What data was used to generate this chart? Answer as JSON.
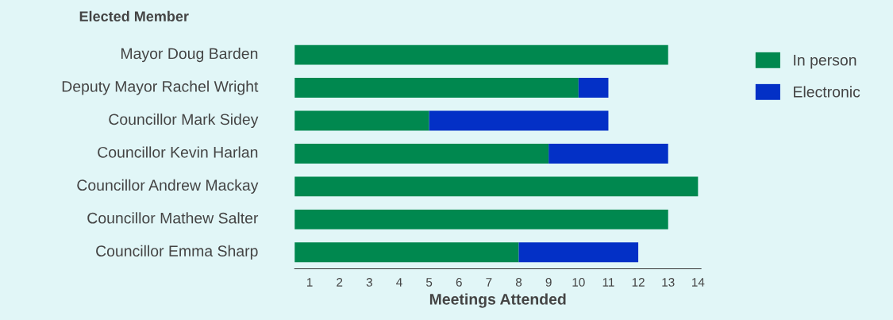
{
  "chart_data": {
    "type": "bar",
    "orientation": "horizontal",
    "stacked": true,
    "annotations": [
      "Elected Member"
    ],
    "xlabel": "Meetings Attended",
    "categories": [
      "Mayor Doug Barden",
      "Deputy Mayor Rachel Wright",
      "Councillor Mark Sidey",
      "Councillor Kevin Harlan",
      "Councillor Andrew Mackay",
      "Councillor Mathew Salter",
      "Councillor Emma Sharp"
    ],
    "series": [
      {
        "name": "In person",
        "color": "#00884f",
        "values": [
          13,
          10,
          5,
          9,
          14,
          13,
          8
        ]
      },
      {
        "name": "Electronic",
        "color": "#0330c6",
        "values": [
          null,
          1,
          6,
          4,
          null,
          null,
          4
        ]
      }
    ],
    "xlim": [
      0.5,
      14.1
    ],
    "xticks": [
      1,
      2,
      3,
      4,
      5,
      6,
      7,
      8,
      9,
      10,
      11,
      12,
      13,
      14
    ],
    "grid": false,
    "legend": "right"
  }
}
